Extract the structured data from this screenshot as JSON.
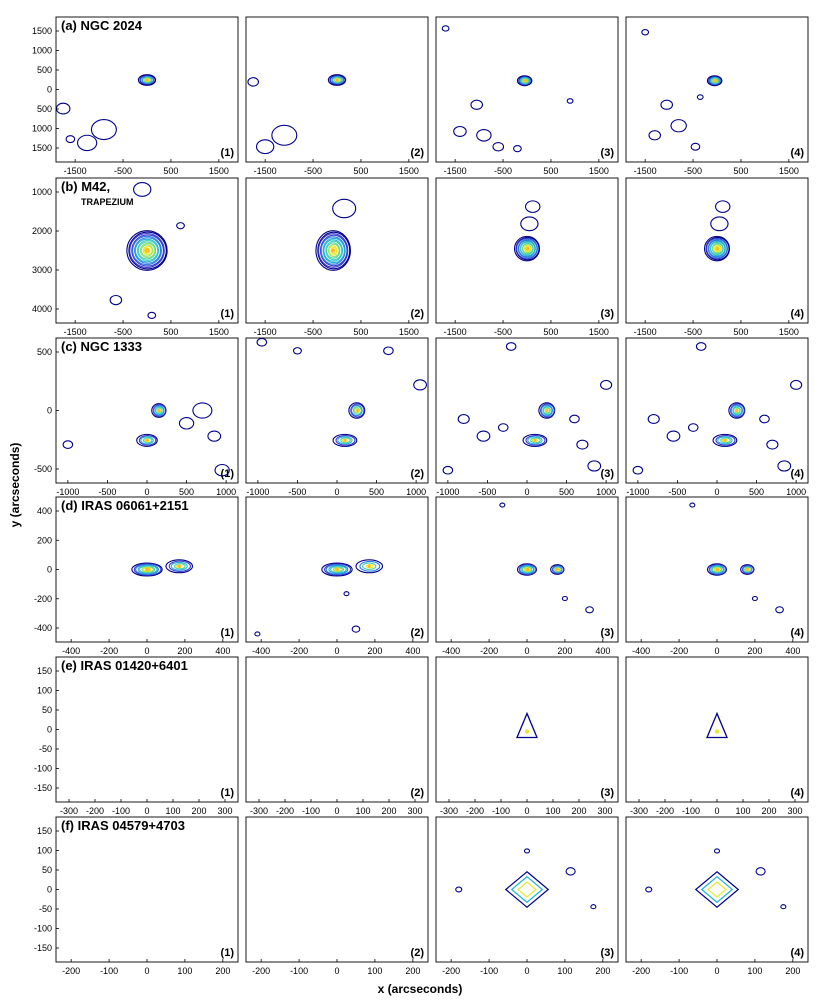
{
  "chart_data": {
    "type": "contour",
    "xlabel": "x (arcseconds)",
    "ylabel": "y (arcseconds)",
    "colormap": [
      "#00008b",
      "#3a3acf",
      "#2a7fe0",
      "#20b3d8",
      "#48d0b0",
      "#8fe070",
      "#e8e830",
      "#f9c020"
    ],
    "columns": [
      "(1)",
      "(2)",
      "(3)",
      "(4)"
    ],
    "rows": [
      {
        "label": "(a) NGC 2024",
        "xticks": [
          -1500,
          -500,
          500,
          1500
        ],
        "yticks": [
          1500,
          1000,
          500,
          0,
          500,
          1000,
          1500
        ],
        "xlim": [
          -1900,
          1900
        ],
        "ylim": [
          1900,
          -1900
        ],
        "panels": [
          {
            "id": "(1)",
            "sources": [
              {
                "x": 0,
                "y": 250,
                "sx": 180,
                "sy": 140,
                "levels": 9
              }
            ],
            "noise": [
              {
                "x": -900,
                "y": -1050,
                "r": 260
              },
              {
                "x": -1250,
                "y": -1400,
                "r": 200
              },
              {
                "x": -1750,
                "y": -500,
                "r": 140
              },
              {
                "x": -1600,
                "y": -1300,
                "r": 90
              }
            ]
          },
          {
            "id": "(2)",
            "sources": [
              {
                "x": 0,
                "y": 250,
                "sx": 180,
                "sy": 140,
                "levels": 9
              }
            ],
            "noise": [
              {
                "x": -1100,
                "y": -1200,
                "r": 260
              },
              {
                "x": -1500,
                "y": -1500,
                "r": 180
              },
              {
                "x": -1750,
                "y": 200,
                "r": 110
              }
            ]
          },
          {
            "id": "(3)",
            "sources": [
              {
                "x": -50,
                "y": 230,
                "sx": 150,
                "sy": 130,
                "levels": 10
              }
            ],
            "noise": [
              {
                "x": -1050,
                "y": -400,
                "r": 120
              },
              {
                "x": -1400,
                "y": -1100,
                "r": 130
              },
              {
                "x": -900,
                "y": -1200,
                "r": 150
              },
              {
                "x": -600,
                "y": -1500,
                "r": 110
              },
              {
                "x": -200,
                "y": -1550,
                "r": 80
              },
              {
                "x": -1700,
                "y": 1600,
                "r": 70
              },
              {
                "x": 900,
                "y": -300,
                "r": 60
              }
            ]
          },
          {
            "id": "(4)",
            "sources": [
              {
                "x": -50,
                "y": 230,
                "sx": 150,
                "sy": 130,
                "levels": 10
              }
            ],
            "noise": [
              {
                "x": -1050,
                "y": -400,
                "r": 120
              },
              {
                "x": -800,
                "y": -950,
                "r": 160
              },
              {
                "x": -1300,
                "y": -1200,
                "r": 120
              },
              {
                "x": -450,
                "y": -1500,
                "r": 90
              },
              {
                "x": -1500,
                "y": 1500,
                "r": 70
              },
              {
                "x": -350,
                "y": -200,
                "r": 60
              }
            ]
          }
        ]
      },
      {
        "label": "(b) M42,",
        "sublabel": "TRAPEZIUM",
        "xticks": [
          -1500,
          -500,
          500,
          1500
        ],
        "yticks": [
          1000,
          2000,
          3000,
          4000
        ],
        "xlim": [
          -1900,
          1900
        ],
        "ylim": [
          900,
          4700
        ],
        "panels": [
          {
            "id": "(1)",
            "sources": [
              {
                "x": 0,
                "y": 2800,
                "sx": 420,
                "sy": 520,
                "levels": 14
              }
            ],
            "noise": [
              {
                "x": -100,
                "y": 1200,
                "r": 180
              },
              {
                "x": 700,
                "y": 2150,
                "r": 80
              },
              {
                "x": -650,
                "y": 4100,
                "r": 120
              },
              {
                "x": 100,
                "y": 4500,
                "r": 80
              }
            ]
          },
          {
            "id": "(2)",
            "sources": [
              {
                "x": -80,
                "y": 2800,
                "sx": 360,
                "sy": 520,
                "levels": 13
              }
            ],
            "noise": [
              {
                "x": 150,
                "y": 1700,
                "r": 240
              }
            ]
          },
          {
            "id": "(3)",
            "sources": [
              {
                "x": 0,
                "y": 2750,
                "sx": 260,
                "sy": 320,
                "levels": 12
              }
            ],
            "noise": [
              {
                "x": 120,
                "y": 1650,
                "r": 150
              },
              {
                "x": 50,
                "y": 2100,
                "r": 180
              }
            ]
          },
          {
            "id": "(4)",
            "sources": [
              {
                "x": 0,
                "y": 2750,
                "sx": 260,
                "sy": 320,
                "levels": 12
              }
            ],
            "noise": [
              {
                "x": 120,
                "y": 1650,
                "r": 150
              },
              {
                "x": 50,
                "y": 2100,
                "r": 180
              }
            ]
          }
        ]
      },
      {
        "label": "(c) NGC 1333",
        "xticks": [
          -1000,
          -500,
          0,
          500,
          1000
        ],
        "yticks": [
          500,
          0,
          -500
        ],
        "xlim": [
          -1150,
          1150
        ],
        "ylim": [
          850,
          -850
        ],
        "panels": [
          {
            "id": "(1)",
            "sources": [
              {
                "x": 150,
                "y": 0,
                "sx": 90,
                "sy": 80,
                "levels": 7
              },
              {
                "x": 0,
                "y": -350,
                "sx": 130,
                "sy": 70,
                "levels": 5
              }
            ],
            "noise": [
              {
                "x": 700,
                "y": 0,
                "r": 120
              },
              {
                "x": 500,
                "y": -150,
                "r": 90
              },
              {
                "x": 850,
                "y": -300,
                "r": 80
              },
              {
                "x": 950,
                "y": -700,
                "r": 90
              },
              {
                "x": -1000,
                "y": -400,
                "r": 60
              }
            ]
          },
          {
            "id": "(2)",
            "sources": [
              {
                "x": 250,
                "y": 0,
                "sx": 100,
                "sy": 90,
                "levels": 6
              },
              {
                "x": 100,
                "y": -350,
                "sx": 150,
                "sy": 70,
                "levels": 5
              }
            ],
            "noise": [
              {
                "x": -950,
                "y": 800,
                "r": 60
              },
              {
                "x": -500,
                "y": 700,
                "r": 50
              },
              {
                "x": 1050,
                "y": 300,
                "r": 80
              },
              {
                "x": 650,
                "y": 700,
                "r": 60
              }
            ]
          },
          {
            "id": "(3)",
            "sources": [
              {
                "x": 250,
                "y": 0,
                "sx": 100,
                "sy": 90,
                "levels": 7
              },
              {
                "x": 100,
                "y": -350,
                "sx": 150,
                "sy": 70,
                "levels": 5
              }
            ],
            "noise": [
              {
                "x": -800,
                "y": -100,
                "r": 70
              },
              {
                "x": -550,
                "y": -300,
                "r": 80
              },
              {
                "x": -300,
                "y": -200,
                "r": 60
              },
              {
                "x": 600,
                "y": -100,
                "r": 60
              },
              {
                "x": 700,
                "y": -400,
                "r": 70
              },
              {
                "x": 850,
                "y": -650,
                "r": 80
              },
              {
                "x": -1000,
                "y": -700,
                "r": 60
              },
              {
                "x": -200,
                "y": 750,
                "r": 60
              },
              {
                "x": 1000,
                "y": 300,
                "r": 70
              }
            ]
          },
          {
            "id": "(4)",
            "sources": [
              {
                "x": 250,
                "y": 0,
                "sx": 100,
                "sy": 90,
                "levels": 7
              },
              {
                "x": 100,
                "y": -350,
                "sx": 150,
                "sy": 70,
                "levels": 5
              }
            ],
            "noise": [
              {
                "x": -800,
                "y": -100,
                "r": 70
              },
              {
                "x": -550,
                "y": -300,
                "r": 80
              },
              {
                "x": -300,
                "y": -200,
                "r": 60
              },
              {
                "x": 600,
                "y": -100,
                "r": 60
              },
              {
                "x": 700,
                "y": -400,
                "r": 70
              },
              {
                "x": 850,
                "y": -650,
                "r": 80
              },
              {
                "x": -1000,
                "y": -700,
                "r": 60
              },
              {
                "x": -200,
                "y": 750,
                "r": 60
              },
              {
                "x": 1000,
                "y": 300,
                "r": 70
              }
            ]
          }
        ]
      },
      {
        "label": "(d) IRAS 06061+2151",
        "xticks": [
          -400,
          -200,
          0,
          200,
          400
        ],
        "yticks": [
          400,
          200,
          0,
          -200,
          -400
        ],
        "xlim": [
          -480,
          480
        ],
        "ylim": [
          450,
          -450
        ],
        "panels": [
          {
            "id": "(1)",
            "sources": [
              {
                "x": 0,
                "y": 0,
                "sx": 80,
                "sy": 40,
                "levels": 8
              },
              {
                "x": 170,
                "y": 20,
                "sx": 70,
                "sy": 40,
                "levels": 5
              }
            ],
            "noise": []
          },
          {
            "id": "(2)",
            "sources": [
              {
                "x": 0,
                "y": 0,
                "sx": 80,
                "sy": 40,
                "levels": 7
              },
              {
                "x": 170,
                "y": 20,
                "sx": 70,
                "sy": 40,
                "levels": 4
              }
            ],
            "noise": [
              {
                "x": 100,
                "y": -370,
                "r": 20
              },
              {
                "x": 50,
                "y": -150,
                "r": 10
              },
              {
                "x": -420,
                "y": -400,
                "r": 10
              }
            ]
          },
          {
            "id": "(3)",
            "sources": [
              {
                "x": 0,
                "y": 0,
                "sx": 50,
                "sy": 35,
                "levels": 8
              },
              {
                "x": 160,
                "y": 0,
                "sx": 35,
                "sy": 30,
                "levels": 6
              }
            ],
            "noise": [
              {
                "x": -130,
                "y": 400,
                "r": 10
              },
              {
                "x": 330,
                "y": -250,
                "r": 20
              },
              {
                "x": 200,
                "y": -180,
                "r": 10
              }
            ]
          },
          {
            "id": "(4)",
            "sources": [
              {
                "x": 0,
                "y": 0,
                "sx": 50,
                "sy": 35,
                "levels": 8
              },
              {
                "x": 160,
                "y": 0,
                "sx": 35,
                "sy": 30,
                "levels": 6
              }
            ],
            "noise": [
              {
                "x": -130,
                "y": 400,
                "r": 10
              },
              {
                "x": 330,
                "y": -250,
                "r": 20
              },
              {
                "x": 200,
                "y": -180,
                "r": 10
              }
            ]
          }
        ]
      },
      {
        "label": "(e) IRAS 01420+6401",
        "xticks": [
          -300,
          -200,
          -100,
          0,
          100,
          200,
          300
        ],
        "yticks": [
          150,
          100,
          50,
          0,
          -50,
          -100,
          -150
        ],
        "xlim": [
          -350,
          350
        ],
        "ylim": [
          160,
          -160
        ],
        "panels": [
          {
            "id": "(1)",
            "sources": [],
            "noise": []
          },
          {
            "id": "(2)",
            "sources": [],
            "noise": []
          },
          {
            "id": "(3)",
            "sources": [
              {
                "x": 0,
                "y": 0,
                "sx": 0,
                "sy": 0,
                "levels": 1,
                "triangle": true
              }
            ],
            "noise": []
          },
          {
            "id": "(4)",
            "sources": [
              {
                "x": 0,
                "y": 0,
                "sx": 0,
                "sy": 0,
                "levels": 1,
                "triangle": true
              }
            ],
            "noise": []
          }
        ]
      },
      {
        "label": "(f) IRAS 04579+4703",
        "xticks": [
          -200,
          -100,
          0,
          100,
          200
        ],
        "yticks": [
          150,
          100,
          50,
          0,
          -50,
          -100,
          -150
        ],
        "xlim": [
          -240,
          240
        ],
        "ylim": [
          160,
          -160
        ],
        "panels": [
          {
            "id": "(1)",
            "sources": [],
            "noise": []
          },
          {
            "id": "(2)",
            "sources": [],
            "noise": []
          },
          {
            "id": "(3)",
            "sources": [
              {
                "x": 0,
                "y": 0,
                "sx": 40,
                "sy": 28,
                "levels": 3,
                "diamond": true
              }
            ],
            "noise": [
              {
                "x": -180,
                "y": 0,
                "r": 8
              },
              {
                "x": 115,
                "y": 40,
                "r": 12
              },
              {
                "x": 175,
                "y": -38,
                "r": 6
              },
              {
                "x": 0,
                "y": 85,
                "r": 3
              }
            ]
          },
          {
            "id": "(4)",
            "sources": [
              {
                "x": 0,
                "y": 0,
                "sx": 40,
                "sy": 28,
                "levels": 3,
                "diamond": true
              }
            ],
            "noise": [
              {
                "x": -180,
                "y": 0,
                "r": 8
              },
              {
                "x": 115,
                "y": 40,
                "r": 12
              },
              {
                "x": 175,
                "y": -38,
                "r": 6
              },
              {
                "x": 0,
                "y": 85,
                "r": 3
              }
            ]
          }
        ]
      }
    ]
  }
}
